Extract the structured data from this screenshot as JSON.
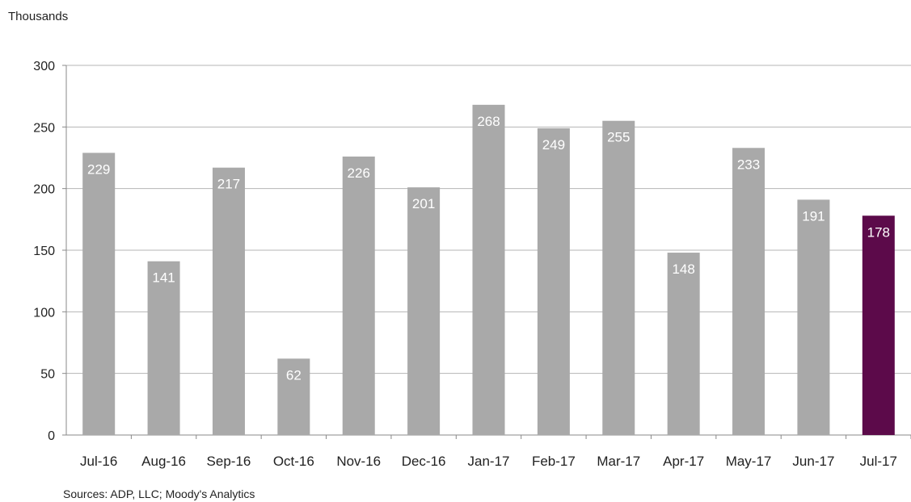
{
  "unit_label": "Thousands",
  "source_note": "Sources: ADP, LLC; Moody's Analytics",
  "colors": {
    "bar": "#a9a9a9",
    "highlight_bar": "#5c0a4a",
    "grid": "#b5b5b5",
    "axis": "#888888",
    "data_label": "#ffffff"
  },
  "chart_data": {
    "type": "bar",
    "categories": [
      "Jul-16",
      "Aug-16",
      "Sep-16",
      "Oct-16",
      "Nov-16",
      "Dec-16",
      "Jan-17",
      "Feb-17",
      "Mar-17",
      "Apr-17",
      "May-17",
      "Jun-17",
      "Jul-17"
    ],
    "values": [
      229,
      141,
      217,
      62,
      226,
      201,
      268,
      249,
      255,
      148,
      233,
      191,
      178
    ],
    "data_labels": [
      "229",
      "141",
      "217",
      "62",
      "226",
      "201",
      "268",
      "249",
      "255",
      "148",
      "233",
      "191",
      "178"
    ],
    "highlight_category": "Jul-17",
    "ylabel": "Thousands",
    "ylim": [
      0,
      300
    ],
    "yticks": [
      0,
      50,
      100,
      150,
      200,
      250,
      300
    ],
    "grid": true,
    "legend": "none"
  }
}
